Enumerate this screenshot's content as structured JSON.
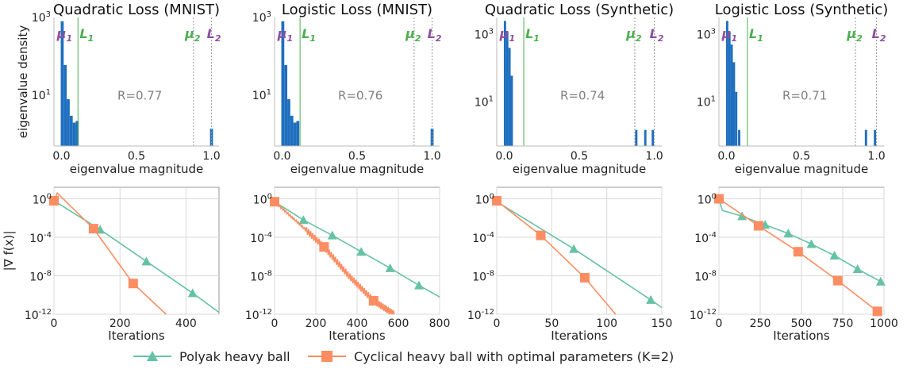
{
  "colors": {
    "polyak": "#66c2a5",
    "cyclical": "#fc8d62",
    "hist": "#1f6fbf",
    "mu": "#8e4fa0",
    "L": "#4caf50",
    "grid": "#d9d9d9",
    "R_text": "#808080"
  },
  "legend": {
    "polyak_label": "Polyak heavy ball",
    "cyclical_label": "Cyclical heavy ball with optimal parameters (K=2)"
  },
  "chart_data": [
    {
      "type": "bar",
      "panel": "hist",
      "title": "Quadratic Loss (MNIST)",
      "xlabel": "eigenvalue magnitude",
      "ylabel": "eigenvalue density",
      "xlim": [
        -0.05,
        1.05
      ],
      "ylim_log10": [
        -0.3,
        3
      ],
      "yscale": "log",
      "xticks": [
        "0.0",
        "0.5",
        "1.0"
      ],
      "yticks": [
        "10^1",
        "10^3"
      ],
      "bars": [
        [
          0.005,
          800
        ],
        [
          0.025,
          60
        ],
        [
          0.045,
          8
        ],
        [
          0.065,
          3
        ],
        [
          0.085,
          2
        ],
        [
          0.105,
          2.2
        ],
        [
          1.0,
          1.4
        ]
      ],
      "markers": {
        "mu1": 0.0,
        "L1": 0.11,
        "mu2": 0.88,
        "L2": 1.0
      },
      "annotation": "R=0.77"
    },
    {
      "type": "bar",
      "panel": "hist",
      "title": "Logistic Loss (MNIST)",
      "xlabel": "eigenvalue magnitude",
      "ylabel": "",
      "xlim": [
        -0.05,
        1.05
      ],
      "ylim_log10": [
        -0.3,
        3
      ],
      "yscale": "log",
      "xticks": [
        "0.0",
        "0.5",
        "1.0"
      ],
      "yticks": [
        "10^1",
        "10^3"
      ],
      "bars": [
        [
          0.005,
          800
        ],
        [
          0.025,
          60
        ],
        [
          0.045,
          8
        ],
        [
          0.065,
          3
        ],
        [
          0.085,
          2
        ],
        [
          0.105,
          2.2
        ],
        [
          1.0,
          1.4
        ]
      ],
      "markers": {
        "mu1": 0.0,
        "L1": 0.12,
        "mu2": 0.88,
        "L2": 1.0
      },
      "annotation": "R=0.76"
    },
    {
      "type": "bar",
      "panel": "hist",
      "title": "Quadratic Loss (Synthetic)",
      "xlabel": "eigenvalue magnitude",
      "ylabel": "",
      "xlim": [
        -0.05,
        1.05
      ],
      "ylim_log10": [
        -0.3,
        3.5
      ],
      "yscale": "log",
      "xticks": [
        "0.0",
        "0.5",
        "1.0"
      ],
      "yticks": [
        "10^1",
        "10^3"
      ],
      "bars": [
        [
          0.005,
          2500
        ],
        [
          0.02,
          1200
        ],
        [
          0.035,
          400
        ],
        [
          0.05,
          60
        ],
        [
          0.88,
          1.5
        ],
        [
          0.94,
          1.5
        ],
        [
          0.99,
          1.5
        ]
      ],
      "markers": {
        "mu1": 0.0,
        "L1": 0.13,
        "mu2": 0.87,
        "L2": 1.0
      },
      "annotation": "R=0.74"
    },
    {
      "type": "bar",
      "panel": "hist",
      "title": "Logistic Loss (Synthetic)",
      "xlabel": "eigenvalue magnitude",
      "ylabel": "",
      "xlim": [
        -0.05,
        1.05
      ],
      "ylim_log10": [
        -0.3,
        3.5
      ],
      "yscale": "log",
      "xticks": [
        "0.0",
        "0.5",
        "1.0"
      ],
      "yticks": [
        "10^1",
        "10^3"
      ],
      "bars": [
        [
          0.005,
          2500
        ],
        [
          0.02,
          1200
        ],
        [
          0.035,
          500
        ],
        [
          0.05,
          150
        ],
        [
          0.065,
          20
        ],
        [
          0.085,
          1.5
        ],
        [
          0.93,
          1.5
        ],
        [
          0.99,
          1.5
        ]
      ],
      "markers": {
        "mu1": 0.0,
        "L1": 0.14,
        "mu2": 0.86,
        "L2": 1.0
      },
      "annotation": "R=0.71"
    },
    {
      "type": "line",
      "panel": "conv",
      "xlabel": "Iterations",
      "ylabel": "|∇ f(x)|",
      "yscale": "log",
      "xlim": [
        0,
        500
      ],
      "ylim_log10": [
        -12,
        1.2
      ],
      "xticks": [
        0,
        200,
        400
      ],
      "yticks": [
        0,
        -4,
        -8,
        -12
      ],
      "series": [
        {
          "name": "Polyak heavy ball",
          "x": [
            0,
            140,
            280,
            420,
            500
          ],
          "y_log10": [
            -0.2,
            -3.2,
            -6.5,
            -9.8,
            -11.8
          ],
          "markers_at": [
            140,
            280,
            420
          ]
        },
        {
          "name": "Cyclical heavy ball with optimal parameters (K=2)",
          "x": [
            0,
            10,
            40,
            120,
            240,
            340
          ],
          "y_log10": [
            -0.2,
            0.6,
            -0.4,
            -3.1,
            -8.8,
            -12
          ],
          "markers_at": [
            0,
            120,
            240
          ]
        }
      ]
    },
    {
      "type": "line",
      "panel": "conv",
      "xlabel": "Iterations",
      "ylabel": "",
      "yscale": "log",
      "xlim": [
        0,
        800
      ],
      "ylim_log10": [
        -12,
        1.2
      ],
      "xticks": [
        0,
        200,
        400,
        600,
        800
      ],
      "yticks": [
        0,
        -4,
        -8,
        -12
      ],
      "series": [
        {
          "name": "Polyak heavy ball",
          "x": [
            0,
            140,
            280,
            420,
            560,
            700,
            800
          ],
          "y_log10": [
            -0.3,
            -2.2,
            -3.8,
            -5.5,
            -7.2,
            -9.0,
            -10.2
          ],
          "markers_at": [
            140,
            280,
            420,
            560,
            700
          ]
        },
        {
          "name": "Cyclical heavy ball with optimal parameters (K=2)",
          "x": [
            0,
            120,
            240,
            360,
            480,
            580
          ],
          "y_log10": [
            -0.3,
            -2.6,
            -5.0,
            -8.0,
            -10.6,
            -12
          ],
          "markers_at": [
            0,
            240,
            480
          ],
          "oscillation": true
        }
      ]
    },
    {
      "type": "line",
      "panel": "conv",
      "xlabel": "Iterations",
      "ylabel": "",
      "yscale": "log",
      "xlim": [
        0,
        150
      ],
      "ylim_log10": [
        -12,
        1.2
      ],
      "xticks": [
        0,
        50,
        100,
        150
      ],
      "yticks": [
        0,
        -4,
        -8,
        -12
      ],
      "series": [
        {
          "name": "Polyak heavy ball",
          "x": [
            0,
            70,
            140,
            150
          ],
          "y_log10": [
            -0.3,
            -5.2,
            -10.5,
            -11.3
          ],
          "markers_at": [
            70,
            140
          ]
        },
        {
          "name": "Cyclical heavy ball with optimal parameters (K=2)",
          "x": [
            0,
            40,
            80,
            108
          ],
          "y_log10": [
            -0.2,
            -3.8,
            -8.2,
            -12
          ],
          "markers_at": [
            0,
            40,
            80
          ]
        }
      ]
    },
    {
      "type": "line",
      "panel": "conv",
      "xlabel": "Iterations",
      "ylabel": "",
      "yscale": "log",
      "xlim": [
        0,
        1000
      ],
      "ylim_log10": [
        -12,
        1.2
      ],
      "xticks": [
        0,
        250,
        500,
        750,
        1000
      ],
      "yticks": [
        0,
        -4,
        -8,
        -12
      ],
      "series": [
        {
          "name": "Polyak heavy ball",
          "x": [
            0,
            20,
            140,
            280,
            420,
            560,
            700,
            840,
            980
          ],
          "y_log10": [
            0,
            -1.2,
            -1.8,
            -2.7,
            -3.6,
            -4.7,
            -5.9,
            -7.3,
            -8.6
          ],
          "markers_at": [
            140,
            280,
            420,
            560,
            700,
            840,
            980
          ]
        },
        {
          "name": "Cyclical heavy ball with optimal parameters (K=2)",
          "x": [
            0,
            240,
            480,
            720,
            960
          ],
          "y_log10": [
            0,
            -2.8,
            -5.5,
            -8.5,
            -11.7
          ],
          "markers_at": [
            0,
            240,
            480,
            720,
            960
          ]
        }
      ]
    }
  ]
}
